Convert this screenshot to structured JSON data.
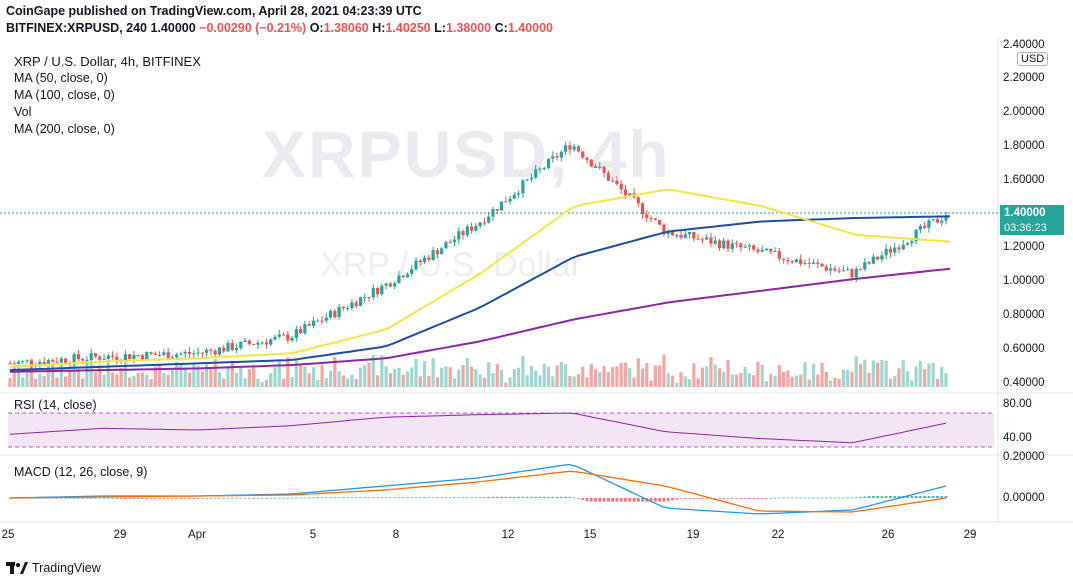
{
  "header": {
    "line1": "CoinGape published on TradingView.com, April 28, 2021 04:23:39 UTC",
    "symbol": "BITFINEX:XRPUSD, 240",
    "price": "1.40000",
    "change": "−0.00290 (−0.21%)",
    "o_label": "O:",
    "o": "1.38060",
    "h_label": "H:",
    "h": "1.40250",
    "l_label": "L:",
    "l": "1.38000",
    "c_label": "C:",
    "c": "1.40000"
  },
  "legend": {
    "title": "XRP / U.S. Dollar, 4h, BITFINEX",
    "ma50": "MA (50, close, 0)",
    "ma100": "MA (100, close, 0)",
    "vol": "Vol",
    "ma200": "MA (200, close, 0)"
  },
  "watermark": {
    "symbol": "XRPUSD, 4h",
    "name": "XRP / U.S. Dollar"
  },
  "price_axis": {
    "currency": "USD",
    "ticks": [
      "2.40000",
      "2.20000",
      "2.00000",
      "1.80000",
      "1.60000",
      "1.40000",
      "1.20000",
      "1.00000",
      "0.80000",
      "0.60000",
      "0.40000"
    ],
    "last_price": "1.40000",
    "countdown": "03:36:23"
  },
  "rsi": {
    "label": "RSI (14, close)",
    "ticks": [
      "80.00",
      "40.00"
    ]
  },
  "macd": {
    "label": "MACD (12, 26, close, 9)",
    "ticks": [
      "0.20000",
      "0.00000"
    ]
  },
  "time_axis": {
    "ticks": [
      "25",
      "29",
      "Apr",
      "5",
      "8",
      "12",
      "15",
      "19",
      "22",
      "26",
      "29"
    ]
  },
  "footer": {
    "brand": "TradingView"
  },
  "colors": {
    "up": "#26a69a",
    "down": "#ef5350",
    "ma50": "#f5e642",
    "ma100": "#1e4fa3",
    "ma200": "#8e24aa",
    "rsi": "#8e24aa",
    "rsi_band": "#e1bee7",
    "macd": "#2196f3",
    "signal": "#ff6d00"
  },
  "chart_data": {
    "type": "candlestick",
    "title": "XRP / U.S. Dollar, 4h, BITFINEX",
    "ylim": [
      0.38,
      2.42
    ],
    "x": [
      "Mar 25",
      "Mar 29",
      "Apr 1",
      "Apr 5",
      "Apr 8",
      "Apr 12",
      "Apr 15",
      "Apr 19",
      "Apr 22",
      "Apr 26",
      "Apr 28"
    ],
    "close": [
      0.52,
      0.56,
      0.58,
      0.68,
      0.98,
      1.35,
      1.82,
      1.3,
      1.18,
      1.05,
      1.4
    ],
    "ma50": [
      0.5,
      0.53,
      0.55,
      0.58,
      0.72,
      1.05,
      1.45,
      1.55,
      1.45,
      1.28,
      1.24
    ],
    "ma100": [
      0.48,
      0.5,
      0.52,
      0.54,
      0.62,
      0.85,
      1.15,
      1.3,
      1.36,
      1.38,
      1.39
    ],
    "ma200": [
      0.47,
      0.48,
      0.49,
      0.51,
      0.55,
      0.65,
      0.78,
      0.88,
      0.95,
      1.02,
      1.08
    ],
    "rsi": [
      55,
      62,
      60,
      65,
      75,
      78,
      80,
      58,
      50,
      45,
      68
    ],
    "macd": [
      0.0,
      0.01,
      0.01,
      0.02,
      0.06,
      0.1,
      0.17,
      -0.05,
      -0.08,
      -0.06,
      0.06
    ]
  }
}
